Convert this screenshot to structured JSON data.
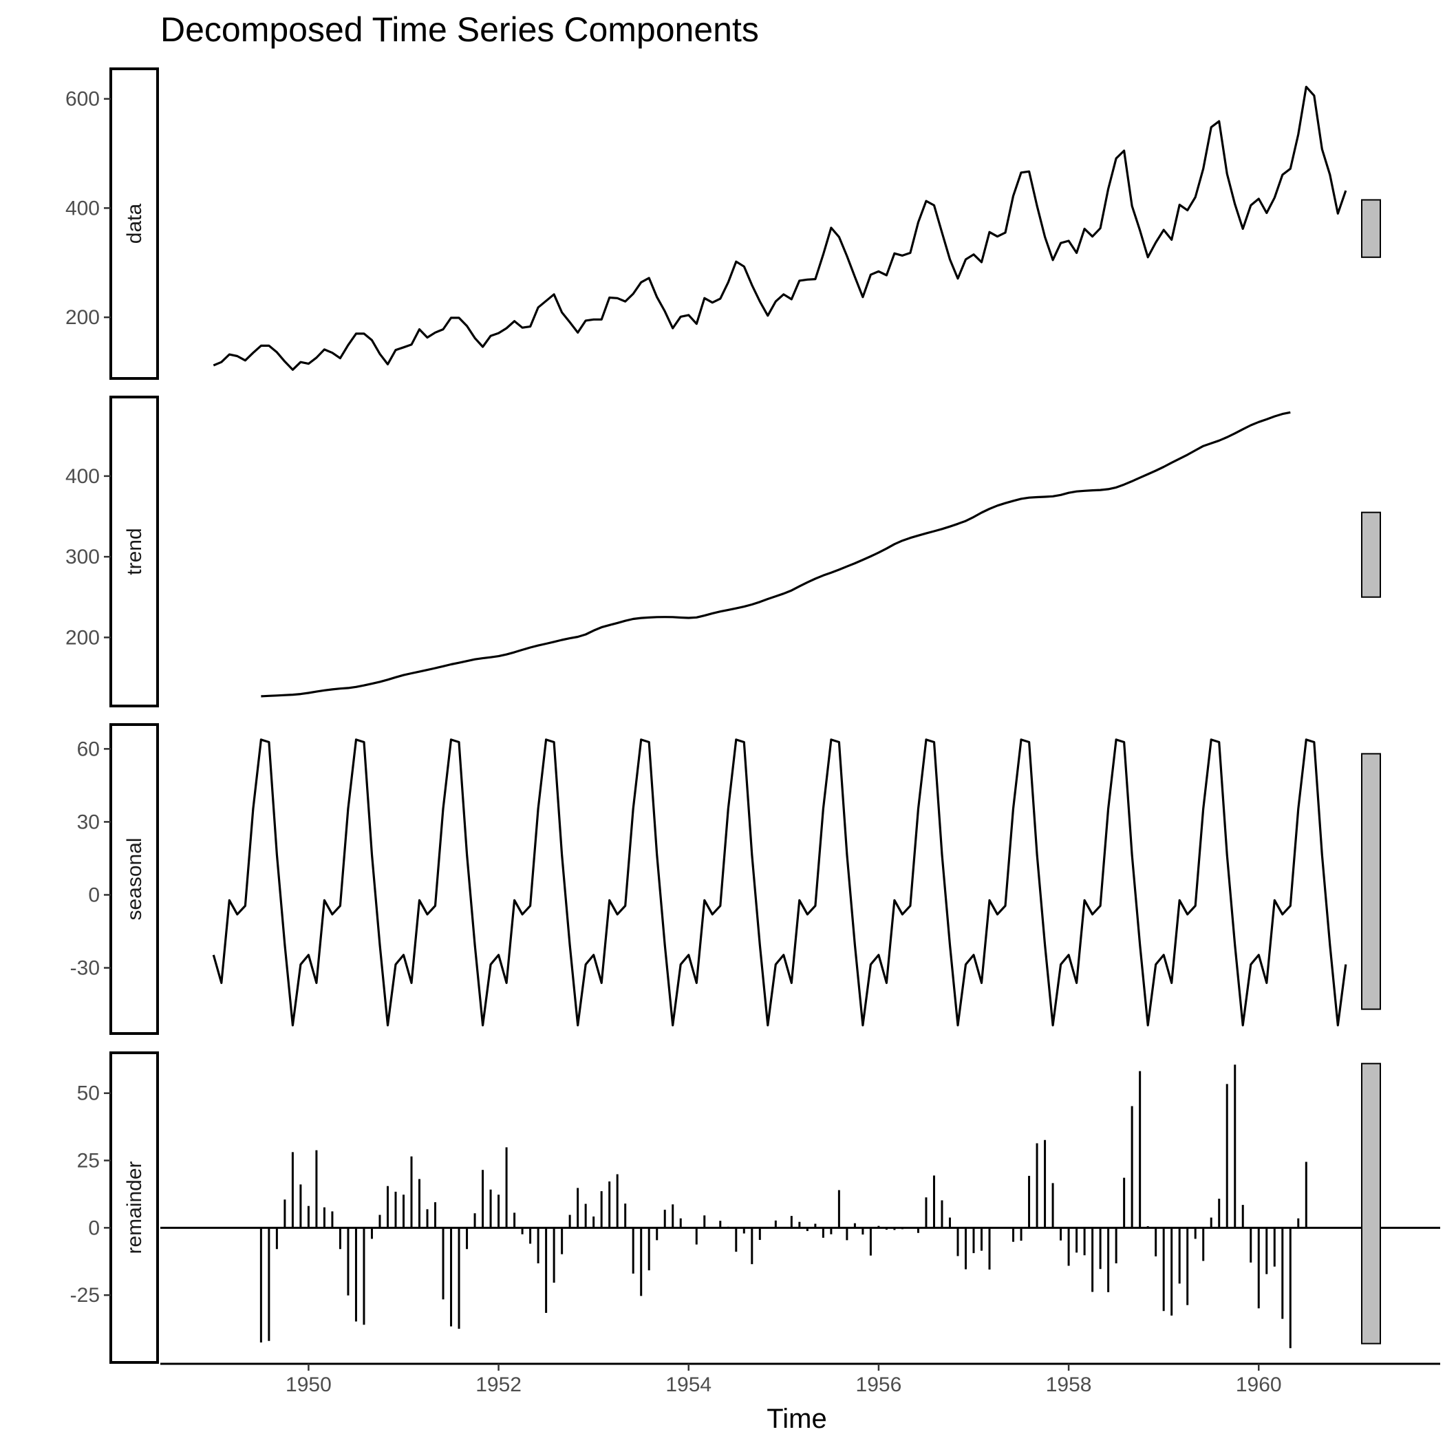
{
  "chart_data": {
    "type": "line",
    "title": "Decomposed Time Series Components",
    "xlabel": "Time",
    "xlim": [
      1948.44,
      1961.91
    ],
    "x_ticks": [
      "1950",
      "1952",
      "1954",
      "1956",
      "1958",
      "1960"
    ],
    "x_tick_values": [
      1950,
      1952,
      1954,
      1956,
      1958,
      1960
    ],
    "frequency": 12,
    "start": 1949,
    "line_color": "#000000",
    "range_bar_color": "#bebebe",
    "panels": [
      {
        "name": "data",
        "type": "line",
        "ylim": [
          88,
          655
        ],
        "y_ticks": [
          "200",
          "400",
          "600"
        ],
        "y_tick_values": [
          200,
          400,
          600
        ],
        "range_bar": [
          310,
          415
        ],
        "values": [
          112,
          118,
          132,
          129,
          121,
          135,
          148,
          148,
          136,
          119,
          104,
          118,
          115,
          126,
          141,
          135,
          125,
          149,
          170,
          170,
          158,
          133,
          114,
          140,
          145,
          150,
          178,
          163,
          172,
          178,
          199,
          199,
          184,
          162,
          146,
          166,
          171,
          180,
          193,
          181,
          183,
          218,
          230,
          242,
          209,
          191,
          172,
          194,
          196,
          196,
          236,
          235,
          229,
          243,
          264,
          272,
          237,
          211,
          180,
          201,
          204,
          188,
          235,
          227,
          234,
          264,
          302,
          293,
          259,
          229,
          203,
          229,
          242,
          233,
          267,
          269,
          270,
          315,
          364,
          347,
          312,
          274,
          237,
          278,
          284,
          277,
          317,
          313,
          318,
          374,
          413,
          405,
          355,
          306,
          271,
          306,
          315,
          301,
          356,
          348,
          355,
          422,
          465,
          467,
          404,
          347,
          305,
          336,
          340,
          318,
          362,
          348,
          363,
          435,
          491,
          505,
          404,
          359,
          310,
          337,
          360,
          342,
          406,
          396,
          420,
          472,
          548,
          559,
          463,
          407,
          362,
          405,
          417,
          391,
          419,
          461,
          472,
          535,
          622,
          606,
          508,
          461,
          390,
          432
        ]
      },
      {
        "name": "trend",
        "type": "line",
        "ylim": [
          115,
          498
        ],
        "y_ticks": [
          "200",
          "300",
          "400"
        ],
        "y_tick_values": [
          200,
          300,
          400
        ],
        "range_bar": [
          250,
          355
        ],
        "offset": 6,
        "values": [
          127.0,
          127.5,
          128.0,
          128.5,
          129.0,
          129.8,
          131.2,
          132.8,
          134.4,
          135.6,
          136.6,
          137.3,
          138.6,
          140.5,
          142.6,
          144.9,
          147.6,
          150.6,
          153.3,
          155.5,
          157.6,
          159.7,
          161.9,
          164.2,
          166.6,
          168.6,
          170.7,
          172.8,
          174.2,
          175.4,
          176.8,
          178.9,
          181.6,
          184.6,
          187.5,
          190.0,
          192.2,
          194.5,
          196.9,
          198.9,
          200.7,
          203.7,
          208.5,
          212.6,
          215.3,
          217.9,
          220.6,
          222.9,
          224.1,
          224.7,
          225.2,
          225.3,
          225.2,
          224.6,
          224.2,
          224.8,
          227.1,
          229.8,
          232.1,
          234.1,
          236.0,
          238.2,
          240.8,
          244.0,
          247.6,
          251.0,
          254.3,
          258.2,
          263.3,
          268.3,
          272.8,
          276.8,
          280.2,
          284.0,
          288.0,
          291.9,
          296.2,
          300.5,
          305.1,
          310.2,
          315.6,
          320.0,
          323.4,
          326.3,
          329.0,
          331.7,
          334.4,
          337.5,
          340.8,
          344.4,
          349.2,
          354.7,
          359.4,
          363.4,
          366.5,
          369.3,
          371.8,
          373.3,
          373.9,
          374.3,
          374.9,
          376.6,
          379.3,
          381.0,
          381.7,
          382.3,
          382.8,
          383.8,
          385.9,
          389.5,
          393.6,
          398.0,
          402.4,
          406.7,
          411.4,
          416.6,
          421.5,
          426.4,
          431.9,
          437.3,
          440.7,
          444.0,
          448.2,
          453.0,
          458.1,
          463.0,
          467.0,
          470.4,
          474.0,
          477.0,
          479.0
        ]
      },
      {
        "name": "seasonal",
        "type": "line",
        "ylim": [
          -57,
          70
        ],
        "y_ticks": [
          "-30",
          "0",
          "30",
          "60"
        ],
        "y_tick_values": [
          -30,
          0,
          30,
          60
        ],
        "range_bar": [
          -47,
          58
        ],
        "values": [
          -24.7,
          -36.2,
          -2.2,
          -8.0,
          -4.5,
          35.4,
          63.8,
          62.8,
          16.5,
          -20.6,
          -53.6,
          -28.6,
          -24.7,
          -36.2,
          -2.2,
          -8.0,
          -4.5,
          35.4,
          63.8,
          62.8,
          16.5,
          -20.6,
          -53.6,
          -28.6,
          -24.7,
          -36.2,
          -2.2,
          -8.0,
          -4.5,
          35.4,
          63.8,
          62.8,
          16.5,
          -20.6,
          -53.6,
          -28.6,
          -24.7,
          -36.2,
          -2.2,
          -8.0,
          -4.5,
          35.4,
          63.8,
          62.8,
          16.5,
          -20.6,
          -53.6,
          -28.6,
          -24.7,
          -36.2,
          -2.2,
          -8.0,
          -4.5,
          35.4,
          63.8,
          62.8,
          16.5,
          -20.6,
          -53.6,
          -28.6,
          -24.7,
          -36.2,
          -2.2,
          -8.0,
          -4.5,
          35.4,
          63.8,
          62.8,
          16.5,
          -20.6,
          -53.6,
          -28.6,
          -24.7,
          -36.2,
          -2.2,
          -8.0,
          -4.5,
          35.4,
          63.8,
          62.8,
          16.5,
          -20.6,
          -53.6,
          -28.6,
          -24.7,
          -36.2,
          -2.2,
          -8.0,
          -4.5,
          35.4,
          63.8,
          62.8,
          16.5,
          -20.6,
          -53.6,
          -28.6,
          -24.7,
          -36.2,
          -2.2,
          -8.0,
          -4.5,
          35.4,
          63.8,
          62.8,
          16.5,
          -20.6,
          -53.6,
          -28.6,
          -24.7,
          -36.2,
          -2.2,
          -8.0,
          -4.5,
          35.4,
          63.8,
          62.8,
          16.5,
          -20.6,
          -53.6,
          -28.6,
          -24.7,
          -36.2,
          -2.2,
          -8.0,
          -4.5,
          35.4,
          63.8,
          62.8,
          16.5,
          -20.6,
          -53.6,
          -28.6,
          -24.7,
          -36.2,
          -2.2,
          -8.0,
          -4.5,
          35.4,
          63.8,
          62.8,
          16.5,
          -20.6,
          -53.6,
          -28.6
        ]
      },
      {
        "name": "remainder",
        "type": "bar",
        "ylim": [
          -50,
          65
        ],
        "y_ticks": [
          "-25",
          "0",
          "25",
          "50"
        ],
        "y_tick_values": [
          -25,
          0,
          25,
          50
        ],
        "range_bar": [
          -43,
          61
        ],
        "offset": 6,
        "values": [
          -42.6,
          -42.0,
          -7.9,
          10.5,
          28.1,
          16.1,
          8.1,
          28.8,
          7.6,
          6.1,
          -7.9,
          -25.1,
          -34.8,
          -36.0,
          -4.1,
          4.8,
          15.5,
          13.4,
          12.3,
          26.5,
          18.1,
          6.9,
          9.5,
          -26.6,
          -36.6,
          -37.5,
          -7.9,
          5.4,
          21.5,
          14.2,
          12.3,
          29.9,
          5.6,
          -2.4,
          -5.9,
          -13.2,
          -31.6,
          -20.4,
          -9.8,
          4.8,
          14.8,
          8.9,
          4.2,
          13.6,
          17.2,
          19.9,
          9.0,
          -17.0,
          -25.3,
          -15.8,
          -4.6,
          6.7,
          8.7,
          3.5,
          -0.2,
          -6.2,
          4.6,
          -0.3,
          2.6,
          0.4,
          -8.9,
          -2.1,
          -13.5,
          -4.5,
          -0.1,
          2.7,
          0.3,
          4.4,
          2.2,
          -1.2,
          1.5,
          -3.7,
          -2.4,
          14.0,
          -4.6,
          1.7,
          -2.5,
          -10.3,
          0.7,
          -0.7,
          -0.8,
          -0.5,
          -0.3,
          -1.9,
          11.3,
          19.4,
          10.2,
          3.8,
          -10.5,
          -15.4,
          -9.4,
          -8.5,
          -15.5,
          -0.2,
          0.3,
          -5.2,
          -4.8,
          19.3,
          31.4,
          32.6,
          16.6,
          -4.7,
          -14.1,
          -9.2,
          -10.2,
          -23.8,
          -15.3,
          -23.9,
          -13.2,
          18.6,
          45.2,
          58.2,
          0.6,
          -10.6,
          -30.9,
          -32.6,
          -20.7,
          -28.7,
          -4.1,
          -12.3,
          3.8,
          10.8,
          53.4,
          60.6,
          8.5,
          -12.9,
          -29.9,
          -17.2,
          -14.4,
          -33.8,
          -44.7,
          3.5,
          24.5
        ]
      }
    ]
  }
}
